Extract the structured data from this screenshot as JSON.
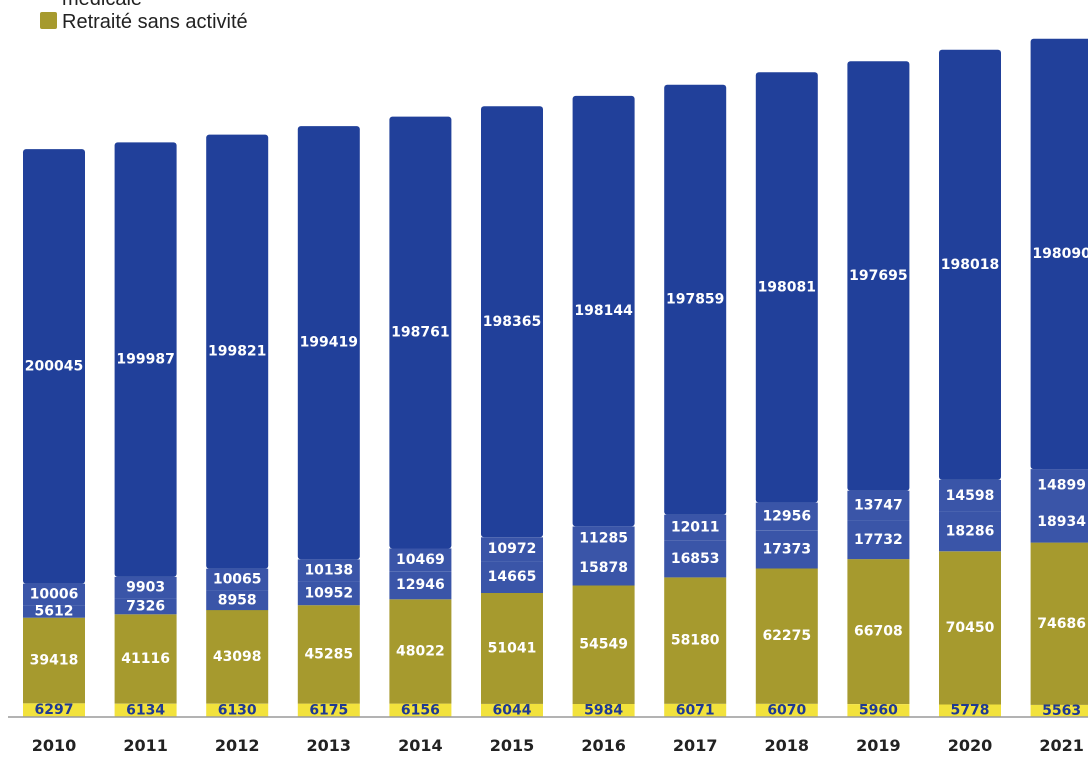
{
  "chart_data": {
    "type": "bar",
    "stacked": true,
    "title": "",
    "xlabel": "",
    "ylabel": "",
    "categories": [
      "2010",
      "2011",
      "2012",
      "2013",
      "2014",
      "2015",
      "2016",
      "2017",
      "2018",
      "2019",
      "2020",
      "2021"
    ],
    "series": [
      {
        "id": "s1",
        "values": [
          6297,
          6134,
          6130,
          6175,
          6156,
          6044,
          5984,
          6071,
          6070,
          5960,
          5778,
          5563
        ],
        "color": "#F2E23C",
        "label_color": "#1F3A93"
      },
      {
        "name": "Retraité sans activité",
        "values": [
          39418,
          41116,
          43098,
          45285,
          48022,
          51041,
          54549,
          58180,
          62275,
          66708,
          70450,
          74686
        ],
        "color": "#A69A2E",
        "label_color": "#FFFFFF"
      },
      {
        "id": "s3",
        "values": [
          5612,
          7326,
          8958,
          10952,
          12946,
          14665,
          15878,
          16853,
          17373,
          17732,
          18286,
          18934
        ],
        "color": "#3A55A8",
        "label_color": "#FFFFFF"
      },
      {
        "id": "s4",
        "values": [
          10006,
          9903,
          10065,
          10138,
          10469,
          10972,
          11285,
          12011,
          12956,
          13747,
          14598,
          14899
        ],
        "color": "#3A55A8",
        "label_color": "#FFFFFF"
      },
      {
        "id": "s5",
        "values": [
          200045,
          199987,
          199821,
          199419,
          198761,
          198365,
          198144,
          197859,
          198081,
          197695,
          198018,
          198090
        ],
        "color": "#21409A",
        "label_color": "#FFFFFF"
      }
    ],
    "legend": {
      "position": "top-left",
      "items": [
        {
          "label": "médicale",
          "color": ""
        },
        {
          "label": "Retraité sans activité",
          "color": "#A69A2E"
        }
      ]
    },
    "ylim": [
      0,
      330000
    ],
    "grid": false
  }
}
